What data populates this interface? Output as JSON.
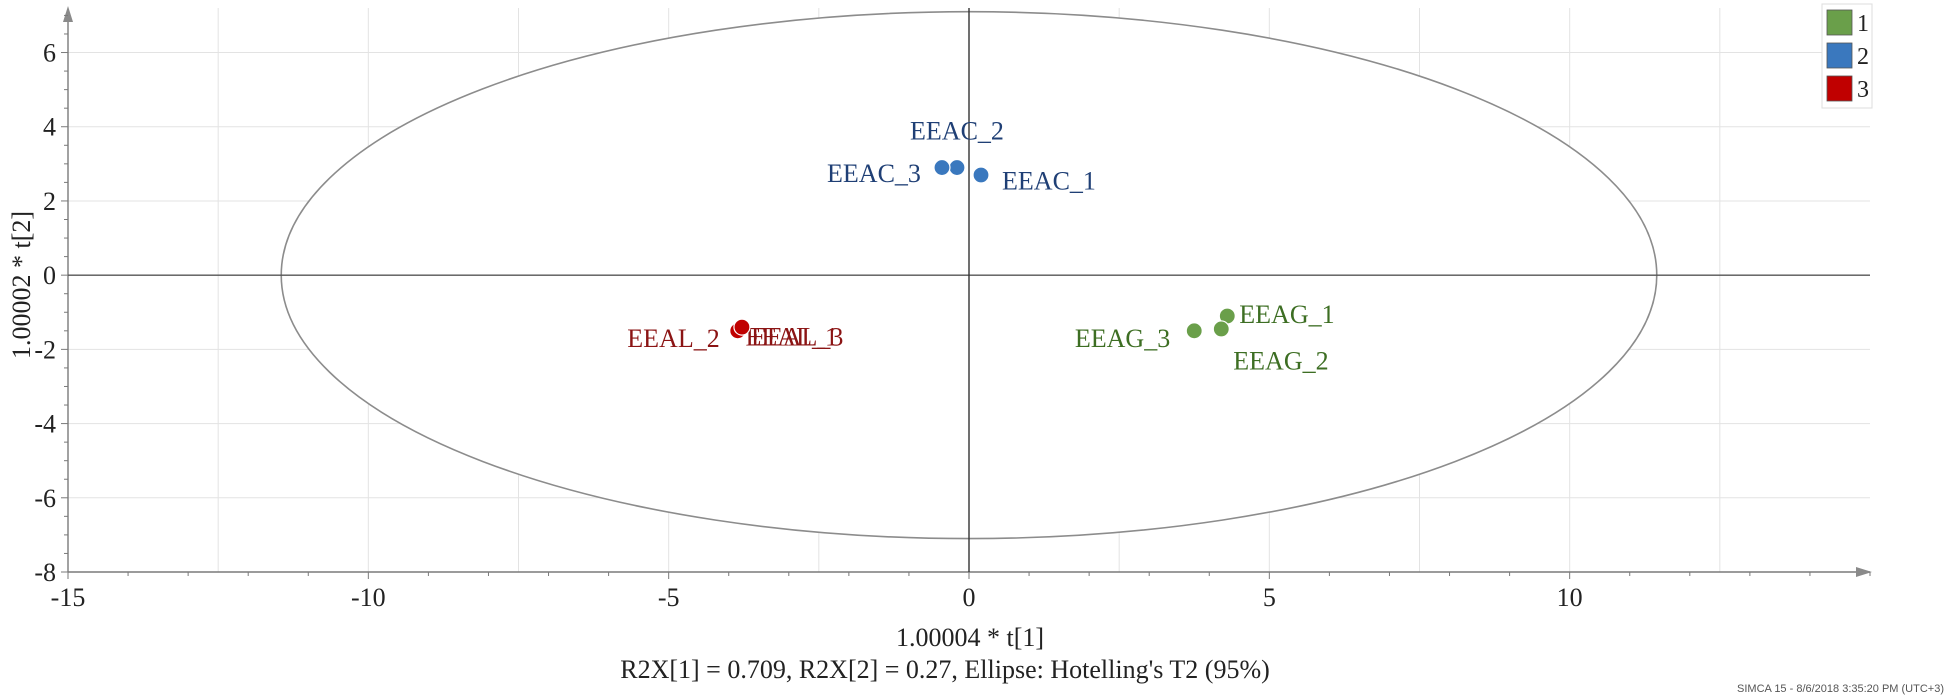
{
  "chart_data": {
    "type": "scatter",
    "title": "",
    "xlabel": "1.00004 * t[1]",
    "ylabel": "1.00002 * t[2]",
    "subtitle": "R2X[1] = 0.709, R2X[2] = 0.27, Ellipse: Hotelling's T2 (95%)",
    "xlim": [
      -15,
      15
    ],
    "ylim": [
      -8,
      7.2
    ],
    "xticks": [
      -15,
      -10,
      -5,
      0,
      5,
      10
    ],
    "yticks": [
      -8,
      -6,
      -4,
      -2,
      0,
      2,
      4,
      6
    ],
    "grid": true,
    "ellipse": {
      "cx": 0,
      "cy": 0,
      "rx": 11.45,
      "ry": 7.1
    },
    "legend": {
      "position": "top-right",
      "entries": [
        {
          "name": "1",
          "color": "#6a9f4a"
        },
        {
          "name": "2",
          "color": "#3a78be"
        },
        {
          "name": "3",
          "color": "#c00000"
        }
      ]
    },
    "series": [
      {
        "name": "1",
        "color": "#6a9f4a",
        "label_color": "#3d6e23",
        "points": [
          {
            "label": "EEAG_1",
            "x": 4.3,
            "y": -1.1,
            "label_dx": 0.2,
            "label_dy": 0.05,
            "anchor": "start"
          },
          {
            "label": "EEAG_2",
            "x": 4.2,
            "y": -1.45,
            "label_dx": 0.2,
            "label_dy": -0.85,
            "anchor": "start"
          },
          {
            "label": "EEAG_3",
            "x": 3.75,
            "y": -1.5,
            "label_dx": -0.4,
            "label_dy": -0.2,
            "anchor": "end"
          }
        ]
      },
      {
        "name": "2",
        "color": "#3a78be",
        "label_color": "#1f3f75",
        "points": [
          {
            "label": "EEAC_1",
            "x": 0.2,
            "y": 2.7,
            "label_dx": 0.35,
            "label_dy": -0.15,
            "anchor": "start"
          },
          {
            "label": "EEAC_2",
            "x": -0.2,
            "y": 2.9,
            "label_dx": 0.0,
            "label_dy": 1.0,
            "anchor": "middle"
          },
          {
            "label": "EEAC_3",
            "x": -0.45,
            "y": 2.9,
            "label_dx": -0.35,
            "label_dy": -0.15,
            "anchor": "end"
          }
        ]
      },
      {
        "name": "3",
        "color": "#c00000",
        "label_color": "#8b1414",
        "points": [
          {
            "label": "EEAL_1",
            "x": -3.82,
            "y": -1.45,
            "label_dx": 0.1,
            "label_dy": -0.2,
            "anchor": "start"
          },
          {
            "label": "EEAL_2",
            "x": -3.85,
            "y": -1.5,
            "label_dx": -0.3,
            "label_dy": -0.2,
            "anchor": "end"
          },
          {
            "label": "EEAL_3",
            "x": -3.78,
            "y": -1.4,
            "label_dx": 0.15,
            "label_dy": -0.25,
            "anchor": "start"
          }
        ]
      }
    ],
    "footer": "SIMCA 15 - 8/6/2018 3:35:20 PM (UTC+3)"
  }
}
